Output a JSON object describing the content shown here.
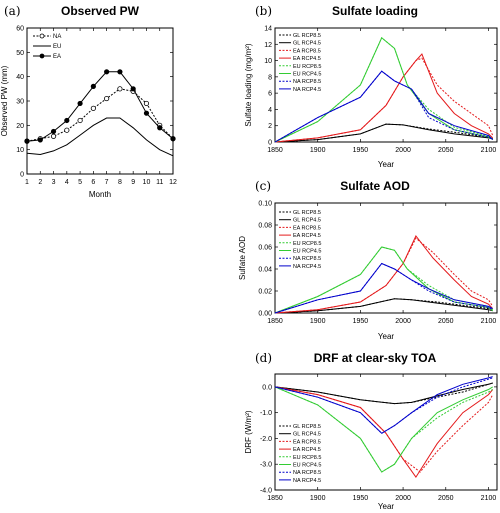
{
  "panels": [
    {
      "id": "a",
      "label": "(a)",
      "title": "Observed PW",
      "xlabel": "Month",
      "ylabel": "Observed PW (mm)"
    },
    {
      "id": "b",
      "label": "(b)",
      "title": "Sulfate loading",
      "xlabel": "Year",
      "ylabel": "Sulfate loading (mg/m²)"
    },
    {
      "id": "c",
      "label": "(c)",
      "title": "Sulfate AOD",
      "xlabel": "Year",
      "ylabel": "Sulfate AOD"
    },
    {
      "id": "d",
      "label": "(d)",
      "title": "DRF at clear-sky TOA",
      "xlabel": "Year",
      "ylabel": "DRF (W/m²)"
    }
  ],
  "chart_data": [
    {
      "type": "line",
      "title": "Observed PW",
      "xlabel": "Month",
      "ylabel": "Observed PW (mm)",
      "x": [
        1,
        2,
        3,
        4,
        5,
        6,
        7,
        8,
        9,
        10,
        11,
        12
      ],
      "xticks": [
        1,
        2,
        3,
        4,
        5,
        6,
        7,
        8,
        9,
        10,
        11,
        12
      ],
      "yticks": [
        0,
        10,
        20,
        30,
        40,
        50,
        60
      ],
      "xlim": [
        1,
        12
      ],
      "ylim": [
        0,
        60
      ],
      "legend": "top-left",
      "series": [
        {
          "name": "NA",
          "color": "#000000",
          "dash": "2,1.5",
          "marker": "open",
          "values": [
            13.5,
            14.5,
            15.5,
            18,
            22,
            27,
            31,
            35,
            34,
            29,
            20,
            14.5
          ]
        },
        {
          "name": "EU",
          "color": "#000000",
          "dash": "",
          "marker": "none",
          "values": [
            8.5,
            8,
            9.5,
            12,
            16,
            20,
            23,
            23,
            19,
            14,
            10,
            7.5
          ]
        },
        {
          "name": "EA",
          "color": "#000000",
          "dash": "",
          "marker": "filled",
          "values": [
            13.5,
            14,
            17.5,
            22,
            29,
            36,
            42,
            42,
            35,
            25,
            19,
            14.5
          ]
        }
      ]
    },
    {
      "type": "line",
      "title": "Sulfate loading",
      "xlabel": "Year",
      "ylabel": "Sulfate loading (mg/m²)",
      "xticks": [
        1850,
        1900,
        1950,
        2000,
        2050,
        2100
      ],
      "yticks": [
        0,
        2,
        4,
        6,
        8,
        10,
        12,
        14
      ],
      "xlim": [
        1850,
        2110
      ],
      "ylim": [
        0,
        14
      ],
      "legend": "top-left",
      "series": [
        {
          "name": "GL RCP8.5",
          "color": "#000000",
          "dash": "2,1.5",
          "x": [
            1850,
            1900,
            1950,
            1980,
            2000,
            2030,
            2060,
            2100,
            2105
          ],
          "y": [
            0,
            0.3,
            1,
            2.2,
            2.1,
            1.6,
            1.2,
            0.6,
            0.4
          ]
        },
        {
          "name": "GL RCP4.5",
          "color": "#000000",
          "dash": "",
          "x": [
            1850,
            1900,
            1950,
            1980,
            2000,
            2030,
            2060,
            2100,
            2105
          ],
          "y": [
            0,
            0.3,
            1,
            2.2,
            2.1,
            1.5,
            1,
            0.5,
            0.4
          ]
        },
        {
          "name": "EA RCP8.5",
          "color": "#e41a1c",
          "dash": "2,1.5",
          "x": [
            1850,
            1900,
            1950,
            1980,
            2000,
            2015,
            2022,
            2040,
            2060,
            2080,
            2100,
            2105
          ],
          "y": [
            0,
            0.5,
            1.5,
            4.5,
            8,
            10,
            10.3,
            7,
            5,
            3.5,
            2,
            0.8
          ]
        },
        {
          "name": "EA RCP4.5",
          "color": "#e41a1c",
          "dash": "",
          "x": [
            1850,
            1900,
            1950,
            1980,
            2000,
            2015,
            2022,
            2040,
            2060,
            2080,
            2100,
            2105
          ],
          "y": [
            0,
            0.5,
            1.5,
            4.5,
            8,
            10,
            10.8,
            6,
            3.5,
            2,
            1,
            0.5
          ]
        },
        {
          "name": "EU RCP8.5",
          "color": "#33cc33",
          "dash": "2,1.5",
          "x": [
            1850,
            1900,
            1950,
            1975,
            1990,
            2005,
            2030,
            2060,
            2100,
            2105
          ],
          "y": [
            0,
            2.5,
            7,
            12.8,
            11.5,
            7,
            4,
            1.8,
            0.7,
            0.4
          ]
        },
        {
          "name": "EU RCP4.5",
          "color": "#33cc33",
          "dash": "",
          "x": [
            1850,
            1900,
            1950,
            1975,
            1990,
            2005,
            2030,
            2060,
            2100,
            2105
          ],
          "y": [
            0,
            2.5,
            7,
            12.8,
            11.5,
            7,
            3.5,
            1.5,
            0.6,
            0.3
          ]
        },
        {
          "name": "NA RCP8.5",
          "color": "#0000cc",
          "dash": "2,1.5",
          "x": [
            1850,
            1900,
            1950,
            1975,
            1990,
            2010,
            2030,
            2060,
            2100,
            2105
          ],
          "y": [
            0,
            3,
            5.5,
            8.7,
            7.5,
            6.5,
            3,
            1.5,
            0.6,
            0.3
          ]
        },
        {
          "name": "NA RCP4.5",
          "color": "#0000cc",
          "dash": "",
          "x": [
            1850,
            1900,
            1950,
            1975,
            1990,
            2010,
            2030,
            2060,
            2100,
            2105
          ],
          "y": [
            0,
            3,
            5.5,
            8.7,
            7.5,
            6.5,
            3.5,
            2,
            0.8,
            0.3
          ]
        }
      ]
    },
    {
      "type": "line",
      "title": "Sulfate AOD",
      "xlabel": "Year",
      "ylabel": "Sulfate AOD",
      "xticks": [
        1850,
        1900,
        1950,
        2000,
        2050,
        2100
      ],
      "yticks": [
        0,
        0.02,
        0.04,
        0.06,
        0.08,
        0.1
      ],
      "ytick_labels": [
        "0.00",
        "0.02",
        "0.04",
        "0.06",
        "0.08",
        "0.10"
      ],
      "xlim": [
        1850,
        2110
      ],
      "ylim": [
        0,
        0.1
      ],
      "legend": "top-left",
      "series": [
        {
          "name": "GL RCP8.5",
          "color": "#000000",
          "dash": "2,1.5",
          "x": [
            1850,
            1900,
            1950,
            1990,
            2010,
            2040,
            2070,
            2100,
            2105
          ],
          "y": [
            0,
            0.002,
            0.006,
            0.013,
            0.012,
            0.01,
            0.007,
            0.004,
            0.003
          ]
        },
        {
          "name": "GL RCP4.5",
          "color": "#000000",
          "dash": "",
          "x": [
            1850,
            1900,
            1950,
            1990,
            2010,
            2040,
            2070,
            2100,
            2105
          ],
          "y": [
            0,
            0.002,
            0.006,
            0.013,
            0.012,
            0.009,
            0.006,
            0.003,
            0.002
          ]
        },
        {
          "name": "EA RCP8.5",
          "color": "#e41a1c",
          "dash": "2,1.5",
          "x": [
            1850,
            1900,
            1950,
            1980,
            2000,
            2015,
            2035,
            2060,
            2080,
            2100,
            2105
          ],
          "y": [
            0,
            0.003,
            0.01,
            0.025,
            0.045,
            0.068,
            0.055,
            0.035,
            0.02,
            0.012,
            0.006
          ]
        },
        {
          "name": "EA RCP4.5",
          "color": "#e41a1c",
          "dash": "",
          "x": [
            1850,
            1900,
            1950,
            1980,
            2000,
            2015,
            2035,
            2060,
            2080,
            2100,
            2105
          ],
          "y": [
            0,
            0.003,
            0.01,
            0.025,
            0.045,
            0.07,
            0.05,
            0.03,
            0.015,
            0.008,
            0.004
          ]
        },
        {
          "name": "EU RCP8.5",
          "color": "#33cc33",
          "dash": "2,1.5",
          "x": [
            1850,
            1900,
            1950,
            1975,
            1990,
            2005,
            2030,
            2060,
            2100,
            2105
          ],
          "y": [
            0,
            0.015,
            0.035,
            0.06,
            0.057,
            0.04,
            0.025,
            0.012,
            0.006,
            0.003
          ]
        },
        {
          "name": "EU RCP4.5",
          "color": "#33cc33",
          "dash": "",
          "x": [
            1850,
            1900,
            1950,
            1975,
            1990,
            2005,
            2030,
            2060,
            2100,
            2105
          ],
          "y": [
            0,
            0.015,
            0.035,
            0.06,
            0.057,
            0.04,
            0.022,
            0.01,
            0.005,
            0.002
          ]
        },
        {
          "name": "NA RCP8.5",
          "color": "#0000cc",
          "dash": "2,1.5",
          "x": [
            1850,
            1900,
            1950,
            1975,
            1990,
            2010,
            2030,
            2060,
            2100,
            2105
          ],
          "y": [
            0,
            0.012,
            0.02,
            0.045,
            0.04,
            0.03,
            0.02,
            0.01,
            0.005,
            0.003
          ]
        },
        {
          "name": "NA RCP4.5",
          "color": "#0000cc",
          "dash": "",
          "x": [
            1850,
            1900,
            1950,
            1975,
            1990,
            2010,
            2030,
            2060,
            2100,
            2105
          ],
          "y": [
            0,
            0.012,
            0.02,
            0.045,
            0.04,
            0.03,
            0.022,
            0.012,
            0.006,
            0.004
          ]
        }
      ]
    },
    {
      "type": "line",
      "title": "DRF at clear-sky TOA",
      "xlabel": "Year",
      "ylabel": "DRF (W/m²)",
      "xticks": [
        1850,
        1900,
        1950,
        2000,
        2050,
        2100
      ],
      "yticks": [
        -4,
        -3,
        -2,
        -1,
        0
      ],
      "ytick_labels": [
        "-4.0",
        "-3.0",
        "-2.0",
        "-1.0",
        "0.0"
      ],
      "xlim": [
        1850,
        2110
      ],
      "ylim": [
        -4,
        0.5
      ],
      "legend": "bottom-left",
      "series": [
        {
          "name": "GL RCP8.5",
          "color": "#000000",
          "dash": "2,1.5",
          "x": [
            1850,
            1900,
            1950,
            1990,
            2010,
            2040,
            2070,
            2100,
            2105
          ],
          "y": [
            0,
            -0.2,
            -0.5,
            -0.65,
            -0.6,
            -0.4,
            -0.2,
            0.1,
            0.15
          ]
        },
        {
          "name": "GL RCP4.5",
          "color": "#000000",
          "dash": "",
          "x": [
            1850,
            1900,
            1950,
            1990,
            2010,
            2040,
            2070,
            2100,
            2105
          ],
          "y": [
            0,
            -0.2,
            -0.5,
            -0.65,
            -0.6,
            -0.35,
            -0.1,
            0.1,
            0.15
          ]
        },
        {
          "name": "EA RCP8.5",
          "color": "#e41a1c",
          "dash": "2,1.5",
          "x": [
            1850,
            1900,
            1950,
            1980,
            2000,
            2020,
            2040,
            2070,
            2100,
            2105
          ],
          "y": [
            0,
            -0.3,
            -0.8,
            -1.8,
            -2.8,
            -3.3,
            -2.5,
            -1.5,
            -0.6,
            -0.3
          ]
        },
        {
          "name": "EA RCP4.5",
          "color": "#e41a1c",
          "dash": "",
          "x": [
            1850,
            1900,
            1950,
            1980,
            2000,
            2015,
            2040,
            2070,
            2100,
            2105
          ],
          "y": [
            0,
            -0.3,
            -0.8,
            -1.8,
            -2.8,
            -3.5,
            -2.2,
            -1,
            -0.3,
            -0.1
          ]
        },
        {
          "name": "EU RCP8.5",
          "color": "#33cc33",
          "dash": "2,1.5",
          "x": [
            1850,
            1900,
            1950,
            1975,
            1990,
            2010,
            2040,
            2070,
            2100,
            2105
          ],
          "y": [
            0,
            -0.7,
            -2,
            -3.3,
            -3,
            -2,
            -1.2,
            -0.6,
            -0.2,
            -0.1
          ]
        },
        {
          "name": "EU RCP4.5",
          "color": "#33cc33",
          "dash": "",
          "x": [
            1850,
            1900,
            1950,
            1975,
            1990,
            2010,
            2040,
            2070,
            2100,
            2105
          ],
          "y": [
            0,
            -0.7,
            -2,
            -3.3,
            -3,
            -2,
            -1,
            -0.5,
            -0.1,
            0
          ]
        },
        {
          "name": "NA RCP8.5",
          "color": "#0000cc",
          "dash": "2,1.5",
          "x": [
            1850,
            1900,
            1950,
            1975,
            1990,
            2010,
            2040,
            2070,
            2100,
            2105
          ],
          "y": [
            0,
            -0.4,
            -1,
            -1.8,
            -1.5,
            -1,
            -0.4,
            0,
            0.3,
            0.35
          ]
        },
        {
          "name": "NA RCP4.5",
          "color": "#0000cc",
          "dash": "",
          "x": [
            1850,
            1900,
            1950,
            1975,
            1990,
            2010,
            2040,
            2070,
            2100,
            2105
          ],
          "y": [
            0,
            -0.4,
            -1,
            -1.8,
            -1.5,
            -1,
            -0.3,
            0.1,
            0.35,
            0.4
          ]
        }
      ]
    }
  ]
}
